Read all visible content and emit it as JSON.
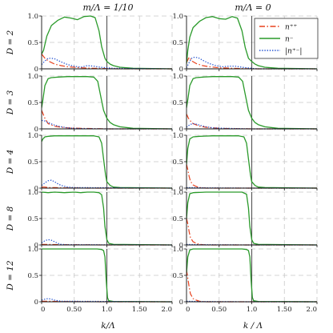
{
  "chart_data": {
    "type": "line",
    "column_titles": [
      "m/Λ = 1/10",
      "m/Λ = 0"
    ],
    "row_labels": [
      "D = 2",
      "D = 3",
      "D = 4",
      "D = 8",
      "D = 12"
    ],
    "xlabels": [
      "k/Λ",
      "k / Λ"
    ],
    "xlim": [
      0,
      2
    ],
    "ylim": [
      0,
      1
    ],
    "xticks": [
      "0",
      "0.50",
      "1.0",
      "1.50",
      "2.0"
    ],
    "yticks": [
      "0",
      "0.5",
      "1.0"
    ],
    "grid": true,
    "vertical_marker_x": 1.0,
    "legend": {
      "placement": "top-right",
      "entries": [
        {
          "label": "n⁺⁺",
          "color": "#e8401c",
          "style": "dashdot"
        },
        {
          "label": "n⁻",
          "color": "#2a9a2a",
          "style": "solid"
        },
        {
          "label": "|n⁺⁻|",
          "color": "#2050d0",
          "style": "dotted"
        }
      ]
    },
    "panels": [
      {
        "row": 0,
        "col": 0,
        "series": [
          {
            "name": "n⁺⁺",
            "x": [
              0,
              0.05,
              0.1,
              0.2,
              0.3,
              0.4,
              0.6,
              0.8,
              1.0,
              1.2,
              2.0
            ],
            "y": [
              0.28,
              0.2,
              0.15,
              0.09,
              0.06,
              0.04,
              0.02,
              0.01,
              0.005,
              0,
              0
            ]
          },
          {
            "name": "n⁻",
            "x": [
              0,
              0.03,
              0.08,
              0.15,
              0.25,
              0.35,
              0.45,
              0.55,
              0.65,
              0.75,
              0.82,
              0.88,
              0.92,
              0.97,
              1.0,
              1.05,
              1.1,
              1.2,
              1.4,
              2.0
            ],
            "y": [
              0.28,
              0.35,
              0.62,
              0.82,
              0.92,
              0.98,
              0.96,
              0.93,
              0.99,
              1.0,
              0.97,
              0.72,
              0.42,
              0.2,
              0.14,
              0.09,
              0.06,
              0.03,
              0.01,
              0
            ]
          },
          {
            "name": "|n⁺⁻|",
            "x": [
              0,
              0.05,
              0.1,
              0.15,
              0.2,
              0.3,
              0.4,
              0.5,
              0.6,
              0.7,
              0.8,
              0.9,
              1.0,
              1.1,
              2.0
            ],
            "y": [
              0.08,
              0.15,
              0.2,
              0.2,
              0.19,
              0.13,
              0.08,
              0.05,
              0.03,
              0.06,
              0.05,
              0.03,
              0.02,
              0.01,
              0
            ]
          }
        ]
      },
      {
        "row": 0,
        "col": 1,
        "series": [
          {
            "name": "n⁺⁺",
            "x": [
              0,
              0.04,
              0.08,
              0.15,
              0.25,
              0.35,
              0.5,
              0.7,
              1.0,
              2.0
            ],
            "y": [
              0.12,
              0.22,
              0.15,
              0.1,
              0.06,
              0.04,
              0.02,
              0.01,
              0,
              0
            ]
          },
          {
            "name": "n⁻",
            "x": [
              0,
              0.02,
              0.05,
              0.1,
              0.2,
              0.3,
              0.4,
              0.5,
              0.6,
              0.7,
              0.78,
              0.85,
              0.9,
              0.95,
              1.0,
              1.05,
              1.1,
              1.2,
              1.4,
              2.0
            ],
            "y": [
              0.1,
              0.35,
              0.6,
              0.78,
              0.9,
              0.97,
              0.99,
              0.95,
              0.94,
              0.99,
              0.96,
              0.72,
              0.4,
              0.2,
              0.14,
              0.09,
              0.06,
              0.03,
              0.01,
              0
            ]
          },
          {
            "name": "|n⁺⁻|",
            "x": [
              0,
              0.04,
              0.08,
              0.12,
              0.18,
              0.25,
              0.35,
              0.45,
              0.55,
              0.65,
              0.75,
              0.85,
              1.0,
              1.1,
              2.0
            ],
            "y": [
              0.02,
              0.12,
              0.2,
              0.22,
              0.21,
              0.16,
              0.1,
              0.06,
              0.04,
              0.05,
              0.05,
              0.03,
              0.01,
              0,
              0
            ]
          }
        ]
      },
      {
        "row": 1,
        "col": 0,
        "series": [
          {
            "name": "n⁺⁺",
            "x": [
              0,
              0.05,
              0.1,
              0.2,
              0.3,
              0.4,
              0.6,
              0.8,
              1.0,
              2.0
            ],
            "y": [
              0.35,
              0.2,
              0.1,
              0.05,
              0.03,
              0.02,
              0.01,
              0.005,
              0,
              0
            ]
          },
          {
            "name": "n⁻",
            "x": [
              0,
              0.02,
              0.05,
              0.1,
              0.15,
              0.25,
              0.4,
              0.55,
              0.7,
              0.8,
              0.86,
              0.9,
              0.95,
              1.0,
              1.05,
              1.1,
              1.2,
              1.4,
              2.0
            ],
            "y": [
              0.4,
              0.55,
              0.82,
              0.95,
              0.97,
              0.98,
              0.99,
              0.99,
              0.99,
              0.98,
              0.9,
              0.65,
              0.35,
              0.2,
              0.12,
              0.08,
              0.04,
              0.01,
              0
            ]
          },
          {
            "name": "|n⁺⁻|",
            "x": [
              0,
              0.05,
              0.1,
              0.2,
              0.3,
              0.4,
              0.5,
              0.7,
              1.0,
              2.0
            ],
            "y": [
              0.16,
              0.15,
              0.12,
              0.07,
              0.04,
              0.02,
              0.01,
              0.005,
              0,
              0
            ]
          }
        ]
      },
      {
        "row": 1,
        "col": 1,
        "series": [
          {
            "name": "n⁺⁺",
            "x": [
              0,
              0.03,
              0.06,
              0.1,
              0.2,
              0.3,
              0.5,
              0.7,
              1.0,
              2.0
            ],
            "y": [
              0.28,
              0.2,
              0.15,
              0.1,
              0.05,
              0.03,
              0.01,
              0.005,
              0,
              0
            ]
          },
          {
            "name": "n⁻",
            "x": [
              0,
              0.02,
              0.05,
              0.1,
              0.15,
              0.25,
              0.4,
              0.55,
              0.7,
              0.8,
              0.86,
              0.9,
              0.95,
              1.0,
              1.05,
              1.1,
              1.2,
              1.4,
              2.0
            ],
            "y": [
              0.4,
              0.55,
              0.82,
              0.95,
              0.97,
              0.98,
              0.99,
              0.99,
              0.99,
              0.98,
              0.9,
              0.65,
              0.35,
              0.2,
              0.12,
              0.08,
              0.04,
              0.01,
              0
            ]
          },
          {
            "name": "|n⁺⁻|",
            "x": [
              0,
              0.05,
              0.1,
              0.15,
              0.2,
              0.3,
              0.4,
              0.6,
              1.0,
              2.0
            ],
            "y": [
              0.03,
              0.08,
              0.1,
              0.09,
              0.07,
              0.04,
              0.02,
              0.01,
              0,
              0
            ]
          }
        ]
      },
      {
        "row": 2,
        "col": 0,
        "series": [
          {
            "name": "n⁺⁺",
            "x": [
              0,
              0.05,
              0.1,
              0.2,
              0.3,
              0.5,
              0.7,
              1.0,
              2.0
            ],
            "y": [
              0.02,
              0.02,
              0.01,
              0.01,
              0.005,
              0.005,
              0,
              0,
              0
            ]
          },
          {
            "name": "n⁻",
            "x": [
              0,
              0.02,
              0.05,
              0.1,
              0.2,
              0.4,
              0.6,
              0.8,
              0.88,
              0.92,
              0.95,
              0.98,
              1.0,
              1.05,
              1.1,
              1.2,
              2.0
            ],
            "y": [
              0.88,
              0.93,
              0.97,
              0.98,
              0.99,
              0.99,
              0.99,
              0.99,
              0.97,
              0.85,
              0.55,
              0.25,
              0.12,
              0.05,
              0.02,
              0.01,
              0
            ]
          },
          {
            "name": "|n⁺⁻|",
            "x": [
              0,
              0.05,
              0.1,
              0.15,
              0.2,
              0.25,
              0.3,
              0.4,
              0.5,
              2.0
            ],
            "y": [
              0.05,
              0.1,
              0.14,
              0.15,
              0.12,
              0.08,
              0.05,
              0.02,
              0.01,
              0
            ]
          }
        ]
      },
      {
        "row": 2,
        "col": 1,
        "series": [
          {
            "name": "n⁺⁺",
            "x": [
              0,
              0.02,
              0.04,
              0.06,
              0.1,
              0.15,
              0.2,
              0.3,
              2.0
            ],
            "y": [
              0.45,
              0.35,
              0.22,
              0.13,
              0.06,
              0.03,
              0.01,
              0,
              0
            ]
          },
          {
            "name": "n⁻",
            "x": [
              0,
              0.02,
              0.05,
              0.1,
              0.2,
              0.4,
              0.6,
              0.8,
              0.88,
              0.92,
              0.95,
              0.98,
              1.0,
              1.05,
              1.1,
              1.2,
              2.0
            ],
            "y": [
              0.45,
              0.75,
              0.93,
              0.97,
              0.98,
              0.99,
              0.99,
              0.99,
              0.97,
              0.85,
              0.55,
              0.25,
              0.12,
              0.05,
              0.02,
              0.01,
              0
            ]
          },
          {
            "name": "|n⁺⁻|",
            "x": [
              0,
              0.1,
              0.3,
              1.0,
              2.0
            ],
            "y": [
              0.01,
              0.01,
              0.005,
              0,
              0
            ]
          }
        ]
      },
      {
        "row": 3,
        "col": 0,
        "series": [
          {
            "name": "n⁺⁺",
            "x": [
              0,
              0.1,
              0.3,
              1.0,
              2.0
            ],
            "y": [
              0.01,
              0.01,
              0.005,
              0,
              0
            ]
          },
          {
            "name": "n⁻",
            "x": [
              0,
              0.1,
              0.2,
              0.35,
              0.5,
              0.6,
              0.7,
              0.8,
              0.88,
              0.92,
              0.95,
              0.97,
              1.0,
              1.03,
              1.1,
              2.0
            ],
            "y": [
              1.0,
              0.99,
              1.0,
              0.99,
              1.0,
              0.99,
              1.0,
              1.0,
              0.99,
              0.95,
              0.7,
              0.35,
              0.1,
              0.03,
              0.01,
              0
            ]
          },
          {
            "name": "|n⁺⁻|",
            "x": [
              0,
              0.05,
              0.1,
              0.15,
              0.2,
              0.25,
              0.3,
              0.4,
              2.0
            ],
            "y": [
              0.04,
              0.08,
              0.1,
              0.09,
              0.06,
              0.03,
              0.01,
              0.005,
              0
            ]
          }
        ]
      },
      {
        "row": 3,
        "col": 1,
        "series": [
          {
            "name": "n⁺⁺",
            "x": [
              0,
              0.02,
              0.04,
              0.06,
              0.1,
              0.15,
              0.2,
              0.3,
              2.0
            ],
            "y": [
              0.5,
              0.4,
              0.25,
              0.14,
              0.06,
              0.03,
              0.01,
              0,
              0
            ]
          },
          {
            "name": "n⁻",
            "x": [
              0,
              0.02,
              0.05,
              0.1,
              0.3,
              0.5,
              0.7,
              0.85,
              0.92,
              0.95,
              0.97,
              1.0,
              1.03,
              1.1,
              2.0
            ],
            "y": [
              0.5,
              0.8,
              0.97,
              0.99,
              1.0,
              1.0,
              1.0,
              1.0,
              0.96,
              0.7,
              0.35,
              0.1,
              0.03,
              0.01,
              0
            ]
          },
          {
            "name": "|n⁺⁻|",
            "x": [
              0,
              0.2,
              1.0,
              2.0
            ],
            "y": [
              0.01,
              0.005,
              0,
              0
            ]
          }
        ]
      },
      {
        "row": 4,
        "col": 0,
        "series": [
          {
            "name": "n⁺⁺",
            "x": [
              0,
              0.1,
              0.3,
              1.0,
              2.0
            ],
            "y": [
              0.01,
              0.01,
              0.005,
              0,
              0
            ]
          },
          {
            "name": "n⁻",
            "x": [
              0,
              0.1,
              0.3,
              0.5,
              0.7,
              0.85,
              0.92,
              0.95,
              0.97,
              0.99,
              1.01,
              1.03,
              1.1,
              2.0
            ],
            "y": [
              1.0,
              1.0,
              1.0,
              1.0,
              1.0,
              1.0,
              0.99,
              0.97,
              0.85,
              0.4,
              0.08,
              0.02,
              0.005,
              0
            ]
          },
          {
            "name": "|n⁺⁻|",
            "x": [
              0,
              0.05,
              0.1,
              0.15,
              0.2,
              0.3,
              2.0
            ],
            "y": [
              0.03,
              0.05,
              0.06,
              0.05,
              0.03,
              0.01,
              0
            ]
          }
        ]
      },
      {
        "row": 4,
        "col": 1,
        "series": [
          {
            "name": "n⁺⁺",
            "x": [
              0,
              0.02,
              0.04,
              0.06,
              0.1,
              0.15,
              0.2,
              0.3,
              2.0
            ],
            "y": [
              0.6,
              0.45,
              0.28,
              0.15,
              0.06,
              0.03,
              0.01,
              0,
              0
            ]
          },
          {
            "name": "n⁻",
            "x": [
              0,
              0.02,
              0.05,
              0.1,
              0.3,
              0.5,
              0.7,
              0.85,
              0.92,
              0.95,
              0.97,
              0.99,
              1.01,
              1.03,
              1.1,
              2.0
            ],
            "y": [
              0.55,
              0.85,
              0.98,
              1.0,
              1.0,
              1.0,
              1.0,
              1.0,
              0.99,
              0.97,
              0.85,
              0.4,
              0.08,
              0.02,
              0.005,
              0
            ]
          },
          {
            "name": "|n⁺⁻|",
            "x": [
              0,
              0.2,
              1.0,
              2.0
            ],
            "y": [
              0.01,
              0.005,
              0,
              0
            ]
          }
        ]
      }
    ]
  }
}
